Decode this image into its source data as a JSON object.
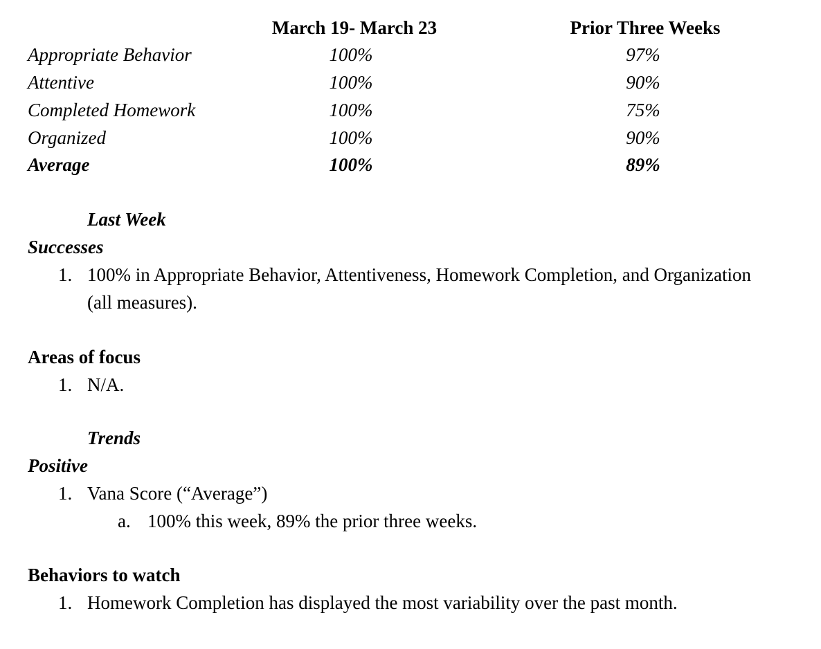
{
  "table": {
    "headers": [
      "March 19- March 23",
      "Prior Three Weeks"
    ],
    "rows": [
      {
        "label": "Appropriate Behavior",
        "week": "100%",
        "prior": "97%"
      },
      {
        "label": "Attentive",
        "week": "100%",
        "prior": "90%"
      },
      {
        "label": "Completed Homework",
        "week": "100%",
        "prior": "75%"
      },
      {
        "label": "Organized",
        "week": "100%",
        "prior": "90%"
      }
    ],
    "average": {
      "label": "Average",
      "week": "100%",
      "prior": "89%"
    }
  },
  "last_week": {
    "heading": "Last Week",
    "successes": {
      "heading": "Successes",
      "items": [
        {
          "num": "1.",
          "line1": "100% in Appropriate Behavior, Attentiveness, Homework Completion, and Organization",
          "line2": "(all measures)."
        }
      ]
    },
    "focus": {
      "heading": "Areas of focus",
      "items": [
        {
          "num": "1.",
          "text": "N/A."
        }
      ]
    }
  },
  "trends": {
    "heading": "Trends",
    "positive": {
      "heading": "Positive",
      "items": [
        {
          "num": "1.",
          "text": "Vana Score (“Average”)",
          "sub": {
            "letter": "a.",
            "text": "100% this week, 89% the prior three weeks."
          }
        }
      ]
    },
    "watch": {
      "heading": "Behaviors to watch",
      "items": [
        {
          "num": "1.",
          "text": "Homework Completion has displayed the most variability over the past month."
        }
      ]
    }
  }
}
